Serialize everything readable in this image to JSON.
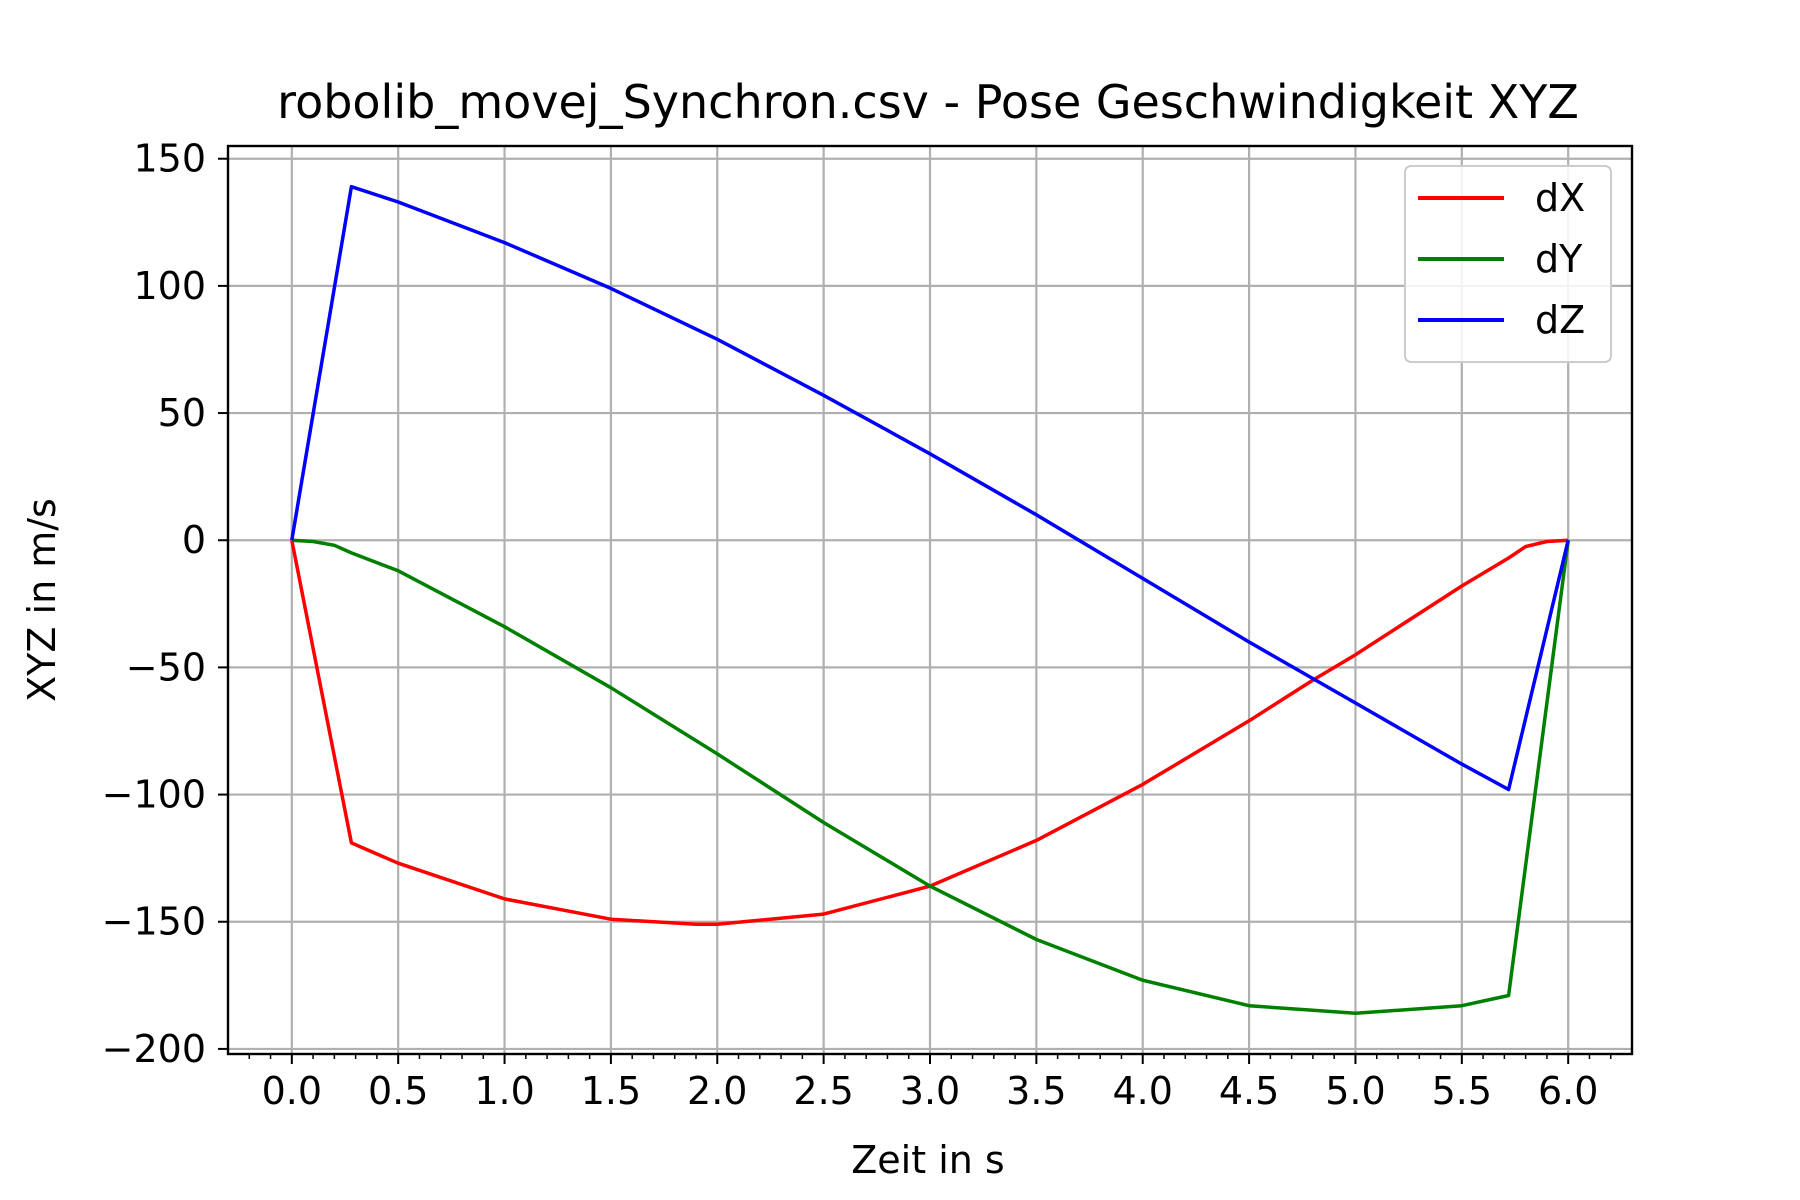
{
  "chart_data": {
    "type": "line",
    "title": "robolib_movej_Synchron.csv - Pose Geschwindigkeit XYZ",
    "xlabel": "Zeit in s",
    "ylabel": "XYZ in m/s",
    "xlim": [
      -0.3,
      6.3
    ],
    "ylim": [
      -202,
      155
    ],
    "xticks": [
      0.0,
      0.5,
      1.0,
      1.5,
      2.0,
      2.5,
      3.0,
      3.5,
      4.0,
      4.5,
      5.0,
      5.5,
      6.0
    ],
    "xtick_labels": [
      "0.0",
      "0.5",
      "1.0",
      "1.5",
      "2.0",
      "2.5",
      "3.0",
      "3.5",
      "4.0",
      "4.5",
      "5.0",
      "5.5",
      "6.0"
    ],
    "yticks": [
      150,
      100,
      50,
      0,
      -50,
      -100,
      -150,
      -200
    ],
    "ytick_labels": [
      "150",
      "100",
      "50",
      "0",
      "−50",
      "−100",
      "−150",
      "−200"
    ],
    "grid": true,
    "legend_position": "top-right",
    "series": [
      {
        "name": "dX",
        "color": "#ff0000",
        "x": [
          0.0,
          0.28,
          0.5,
          1.0,
          1.5,
          1.9,
          2.0,
          2.5,
          3.0,
          3.5,
          4.0,
          4.5,
          4.8,
          5.0,
          5.5,
          5.72,
          5.8,
          5.9,
          6.0
        ],
        "y": [
          0,
          -119,
          -127,
          -141,
          -149,
          -151,
          -151,
          -147,
          -136,
          -118,
          -96,
          -71,
          -55,
          -45,
          -18,
          -7,
          -2.5,
          -0.5,
          0
        ]
      },
      {
        "name": "dY",
        "color": "#008000",
        "x": [
          0.0,
          0.1,
          0.2,
          0.28,
          0.5,
          1.0,
          1.5,
          2.0,
          2.5,
          3.0,
          3.5,
          4.0,
          4.5,
          5.0,
          5.5,
          5.72,
          6.0
        ],
        "y": [
          0,
          -0.5,
          -2,
          -5,
          -12,
          -34,
          -58,
          -84,
          -111,
          -136,
          -157,
          -173,
          -183,
          -186,
          -183,
          -179,
          0
        ]
      },
      {
        "name": "dZ",
        "color": "#0000ff",
        "x": [
          0.0,
          0.28,
          0.5,
          1.0,
          1.5,
          2.0,
          2.5,
          3.0,
          3.5,
          4.0,
          4.5,
          5.0,
          5.5,
          5.72,
          6.0
        ],
        "y": [
          0,
          139,
          133,
          117,
          99,
          79,
          57,
          34,
          10,
          -15,
          -40,
          -64,
          -88,
          -98,
          0
        ]
      }
    ]
  }
}
